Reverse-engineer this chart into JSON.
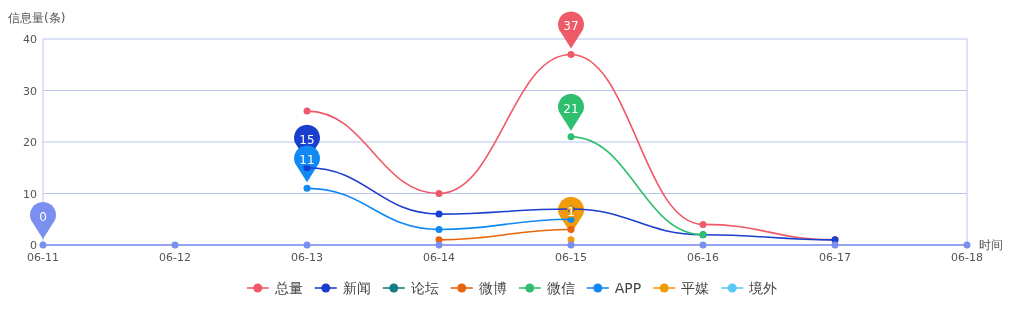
{
  "chart_data": {
    "type": "line",
    "ylabel": "信息量(条)",
    "xlabel": "时间",
    "categories": [
      "06-11",
      "06-12",
      "06-13",
      "06-14",
      "06-15",
      "06-16",
      "06-17",
      "06-18"
    ],
    "ylim": [
      0,
      40
    ],
    "yticks": [
      0,
      10,
      20,
      30,
      40
    ],
    "grid": "y",
    "legend": "bottom",
    "marker": "circle",
    "line_style": "solid",
    "series": [
      {
        "name": "总量",
        "color": "#ee5a68",
        "values": [
          null,
          null,
          26,
          10,
          37,
          4,
          1,
          null
        ],
        "value_labels": [
          null,
          null,
          null,
          null,
          "37",
          null,
          null,
          null
        ]
      },
      {
        "name": "新闻",
        "color": "#1a3fcf",
        "values": [
          null,
          null,
          15,
          6,
          7,
          2,
          1,
          null
        ],
        "value_labels": [
          null,
          null,
          "15",
          null,
          null,
          null,
          null,
          null
        ]
      },
      {
        "name": "论坛",
        "color": "#137e82",
        "values": [
          null,
          null,
          null,
          null,
          null,
          null,
          null,
          null
        ]
      },
      {
        "name": "微博",
        "color": "#e8650c",
        "values": [
          null,
          null,
          null,
          1,
          3,
          null,
          null,
          null
        ]
      },
      {
        "name": "微信",
        "color": "#2fbf6e",
        "values": [
          null,
          null,
          null,
          null,
          21,
          2,
          null,
          null
        ],
        "value_labels": [
          null,
          null,
          null,
          null,
          "21",
          null,
          null,
          null
        ]
      },
      {
        "name": "APP",
        "color": "#1189f5",
        "values": [
          null,
          null,
          11,
          3,
          5,
          null,
          null,
          null
        ],
        "value_labels": [
          null,
          null,
          "11",
          null,
          null,
          null,
          null,
          null
        ]
      },
      {
        "name": "平媒",
        "color": "#f09a0c",
        "values": [
          null,
          null,
          null,
          null,
          1,
          null,
          null,
          null
        ],
        "value_labels": [
          null,
          null,
          null,
          null,
          "1",
          null,
          null,
          null
        ]
      },
      {
        "name": "境外",
        "color": "#5ac8f5",
        "values": [
          null,
          null,
          null,
          null,
          null,
          null,
          null,
          null
        ]
      },
      {
        "color": "#7a8ff0",
        "values": [
          0,
          0,
          0,
          0,
          0,
          0,
          0,
          0
        ],
        "value_labels": [
          "0",
          null,
          null,
          null,
          null,
          null,
          null,
          null
        ]
      }
    ]
  }
}
